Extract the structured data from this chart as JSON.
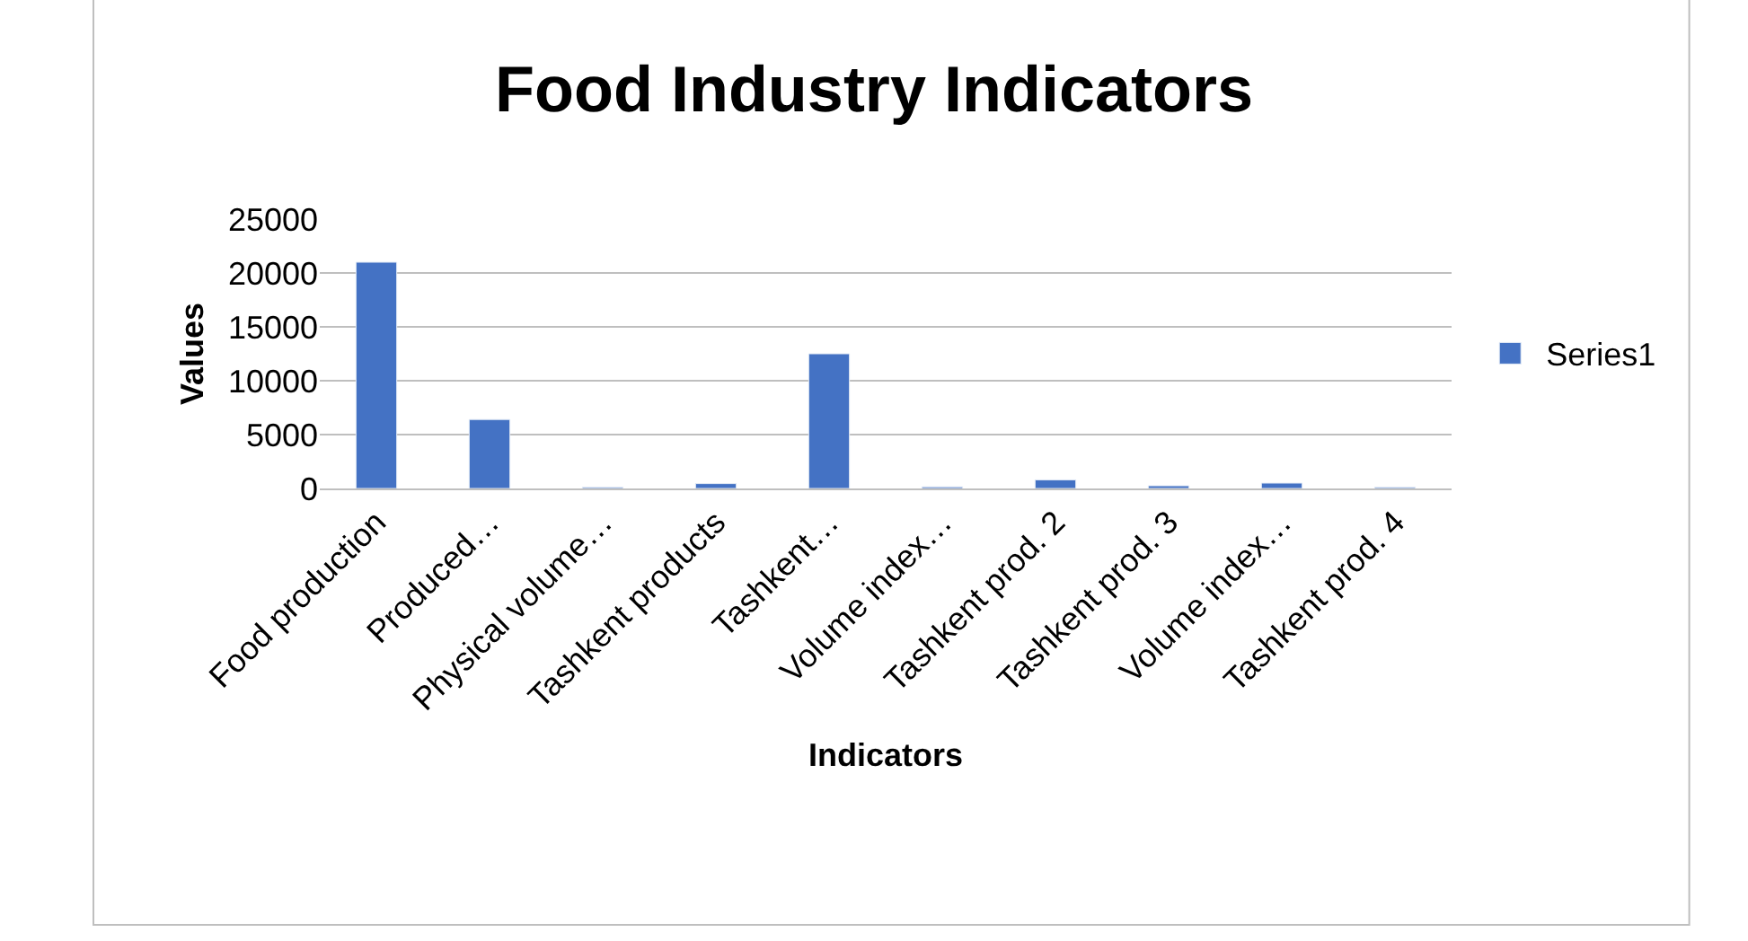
{
  "chart_data": {
    "type": "bar",
    "title": "Food Industry Indicators",
    "xlabel": "Indicators",
    "ylabel": "Values",
    "categories": [
      "Food production",
      "Produced…",
      "Physical volume…",
      "Tashkent products",
      "Tashkent…",
      "Volume index…",
      "Tashkent prod. 2",
      "Tashkent prod. 3",
      "Volume index…",
      "Tashkent prod. 4"
    ],
    "series": [
      {
        "name": "Series1",
        "color": "#4472c4",
        "values": [
          21000,
          6400,
          100,
          450,
          12500,
          150,
          800,
          250,
          500,
          100
        ]
      }
    ],
    "ylim": [
      0,
      25000
    ],
    "yticks": [
      0,
      5000,
      10000,
      15000,
      20000,
      25000
    ],
    "grid": "y",
    "legend": "right"
  }
}
